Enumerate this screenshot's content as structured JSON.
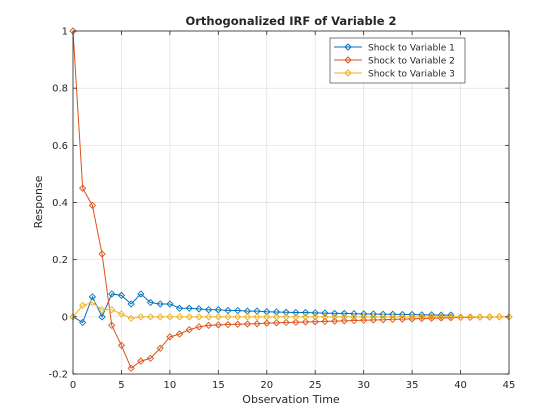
{
  "chart_data": {
    "type": "line",
    "title": "Orthogonalized IRF of Variable 2",
    "xlabel": "Observation Time",
    "ylabel": "Response",
    "xlim": [
      0,
      45
    ],
    "ylim": [
      -0.2,
      1
    ],
    "xticks": [
      0,
      5,
      10,
      15,
      20,
      25,
      30,
      35,
      40,
      45
    ],
    "yticks": [
      -0.2,
      0,
      0.2,
      0.4,
      0.6,
      0.8,
      1
    ],
    "grid": true,
    "legend_position": "top-right",
    "marker": "diamond",
    "series": [
      {
        "name": "Shock to Variable 1",
        "color": "#0072bd",
        "x": [
          0,
          1,
          2,
          3,
          4,
          5,
          6,
          7,
          8,
          9,
          10,
          11,
          12,
          13,
          14,
          15,
          16,
          17,
          18,
          19,
          20,
          21,
          22,
          23,
          24,
          25,
          26,
          27,
          28,
          29,
          30,
          31,
          32,
          33,
          34,
          35,
          36,
          37,
          38,
          39
        ],
        "values": [
          0,
          -0.02,
          0.07,
          0,
          0.08,
          0.075,
          0.045,
          0.08,
          0.05,
          0.045,
          0.045,
          0.03,
          0.03,
          0.028,
          0.025,
          0.025,
          0.022,
          0.022,
          0.02,
          0.02,
          0.018,
          0.017,
          0.016,
          0.015,
          0.015,
          0.014,
          0.013,
          0.012,
          0.012,
          0.011,
          0.01,
          0.01,
          0.009,
          0.009,
          0.008,
          0.008,
          0.007,
          0.007,
          0.006,
          0.006
        ]
      },
      {
        "name": "Shock to Variable 2",
        "color": "#d95319",
        "x": [
          0,
          1,
          2,
          3,
          4,
          5,
          6,
          7,
          8,
          9,
          10,
          11,
          12,
          13,
          14,
          15,
          16,
          17,
          18,
          19,
          20,
          21,
          22,
          23,
          24,
          25,
          26,
          27,
          28,
          29,
          30,
          31,
          32,
          33,
          34,
          35,
          36,
          37,
          38,
          39,
          40,
          41,
          42,
          43,
          44,
          45
        ],
        "values": [
          1,
          0.45,
          0.39,
          0.22,
          -0.03,
          -0.1,
          -0.18,
          -0.155,
          -0.145,
          -0.11,
          -0.07,
          -0.06,
          -0.045,
          -0.035,
          -0.03,
          -0.028,
          -0.027,
          -0.026,
          -0.025,
          -0.024,
          -0.022,
          -0.021,
          -0.02,
          -0.019,
          -0.018,
          -0.017,
          -0.016,
          -0.015,
          -0.014,
          -0.013,
          -0.012,
          -0.011,
          -0.01,
          -0.009,
          -0.008,
          -0.007,
          -0.006,
          -0.005,
          -0.004,
          -0.003,
          -0.002,
          -0.002,
          -0.001,
          -0.001,
          0,
          0
        ]
      },
      {
        "name": "Shock to Variable 3",
        "color": "#edb120",
        "x": [
          0,
          1,
          2,
          3,
          4,
          5,
          6,
          7,
          8,
          9,
          10,
          11,
          12,
          13,
          14,
          15,
          16,
          17,
          18,
          19,
          20,
          21,
          22,
          23,
          24,
          25,
          26,
          27,
          28,
          29,
          30,
          31,
          32,
          33,
          34,
          35,
          36,
          37,
          38,
          39,
          40,
          41,
          42,
          43,
          44,
          45
        ],
        "values": [
          0,
          0.04,
          0.05,
          0.025,
          0.025,
          0.01,
          -0.005,
          0,
          0,
          0,
          0,
          0,
          0,
          0,
          0,
          0,
          0,
          0,
          0,
          0,
          0,
          0,
          0,
          0,
          0,
          0,
          0,
          0,
          0,
          0,
          0,
          0,
          0,
          0,
          0,
          0,
          0,
          0,
          0,
          0,
          0,
          0,
          0,
          0,
          0,
          0
        ]
      }
    ]
  }
}
